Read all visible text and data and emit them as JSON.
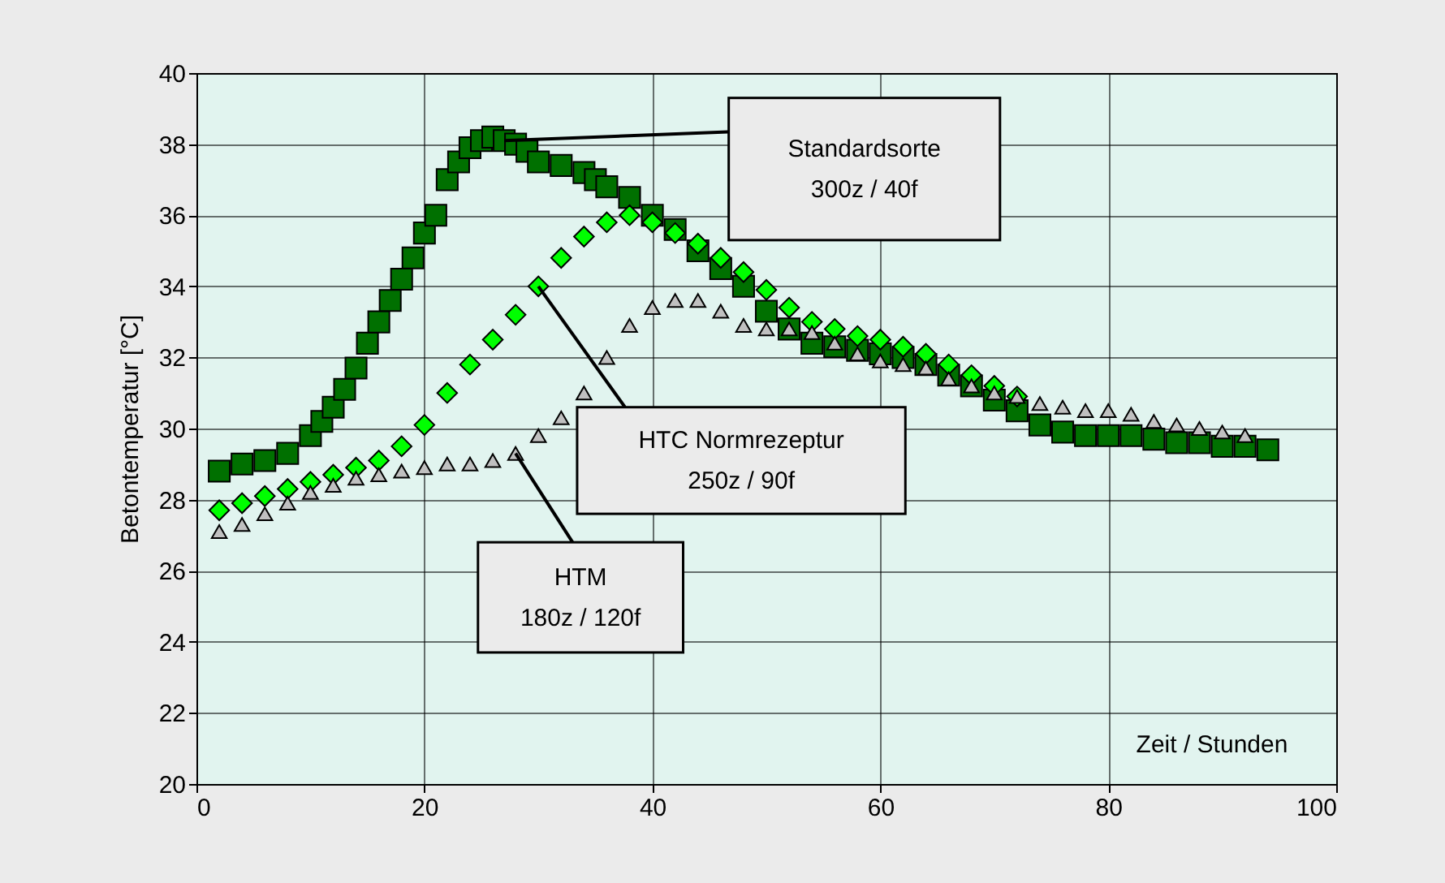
{
  "chart_data": {
    "type": "scatter",
    "xlabel": "Zeit / Stunden",
    "ylabel": "Betontemperatur [°C]",
    "xlim": [
      0,
      100
    ],
    "xticks": [
      0,
      20,
      40,
      60,
      80,
      100
    ],
    "ylim": [
      20,
      40
    ],
    "yticks": [
      20,
      22,
      24,
      26,
      28,
      30,
      32,
      34,
      36,
      38,
      40
    ],
    "grid": true,
    "series": [
      {
        "marker": "square",
        "color": "#007000",
        "x": [
          2,
          4,
          6,
          8,
          10,
          11,
          12,
          13,
          14,
          15,
          16,
          17,
          18,
          19,
          20,
          21,
          22,
          23,
          24,
          25,
          26,
          27,
          28,
          29,
          30,
          32,
          34,
          35,
          36,
          38,
          40,
          42,
          44,
          46,
          48,
          50,
          52,
          54,
          56,
          58,
          60,
          62,
          64,
          66,
          68,
          70,
          72,
          74,
          76,
          78,
          80,
          82,
          84,
          86,
          88,
          90,
          92,
          94
        ],
        "values": [
          28.8,
          29.0,
          29.1,
          29.3,
          29.8,
          30.2,
          30.6,
          31.1,
          31.7,
          32.4,
          33.0,
          33.6,
          34.2,
          34.8,
          35.5,
          36.0,
          37.0,
          37.5,
          37.9,
          38.1,
          38.2,
          38.1,
          38.0,
          37.8,
          37.5,
          37.4,
          37.2,
          37.0,
          36.8,
          36.5,
          36.0,
          35.6,
          35.0,
          34.5,
          34.0,
          33.3,
          32.8,
          32.4,
          32.3,
          32.2,
          32.1,
          32.0,
          31.8,
          31.5,
          31.2,
          30.8,
          30.5,
          30.1,
          29.9,
          29.8,
          29.8,
          29.8,
          29.7,
          29.6,
          29.6,
          29.5,
          29.5,
          29.4
        ]
      },
      {
        "marker": "diamond",
        "color": "#00ff00",
        "x": [
          2,
          4,
          6,
          8,
          10,
          12,
          14,
          16,
          18,
          20,
          22,
          24,
          26,
          28,
          30,
          32,
          34,
          36,
          38,
          40,
          42,
          44,
          46,
          48,
          50,
          52,
          54,
          56,
          58,
          60,
          62,
          64,
          66,
          68,
          70,
          72
        ],
        "values": [
          27.7,
          27.9,
          28.1,
          28.3,
          28.5,
          28.7,
          28.9,
          29.1,
          29.5,
          30.1,
          31.0,
          31.8,
          32.5,
          33.2,
          34.0,
          34.8,
          35.4,
          35.8,
          36.0,
          35.8,
          35.5,
          35.2,
          34.8,
          34.4,
          33.9,
          33.4,
          33.0,
          32.8,
          32.6,
          32.5,
          32.3,
          32.1,
          31.8,
          31.5,
          31.2,
          30.9
        ]
      },
      {
        "marker": "triangle",
        "color": "#c0c0c0",
        "x": [
          2,
          4,
          6,
          8,
          10,
          12,
          14,
          16,
          18,
          20,
          22,
          24,
          26,
          28,
          30,
          32,
          34,
          36,
          38,
          40,
          42,
          44,
          46,
          48,
          50,
          52,
          54,
          56,
          58,
          60,
          62,
          64,
          66,
          68,
          70,
          72,
          74,
          76,
          78,
          80,
          82,
          84,
          86,
          88,
          90,
          92
        ],
        "values": [
          27.1,
          27.3,
          27.6,
          27.9,
          28.2,
          28.4,
          28.6,
          28.7,
          28.8,
          28.9,
          29.0,
          29.0,
          29.1,
          29.3,
          29.8,
          30.3,
          31.0,
          32.0,
          32.9,
          33.4,
          33.6,
          33.6,
          33.3,
          32.9,
          32.8,
          32.8,
          32.7,
          32.4,
          32.1,
          31.9,
          31.8,
          31.7,
          31.4,
          31.2,
          31.0,
          30.9,
          30.7,
          30.6,
          30.5,
          30.5,
          30.4,
          30.2,
          30.1,
          30.0,
          29.9,
          29.8
        ]
      }
    ],
    "annotations": [
      {
        "text": "Standardsorte\n300z / 40f",
        "x": 27,
        "y": 38.1
      },
      {
        "text": "HTC Normrezeptur\n250z / 90f",
        "x": 30,
        "y": 34.0
      },
      {
        "text": "HTM\n180z / 120f",
        "x": 28,
        "y": 29.3
      }
    ]
  }
}
